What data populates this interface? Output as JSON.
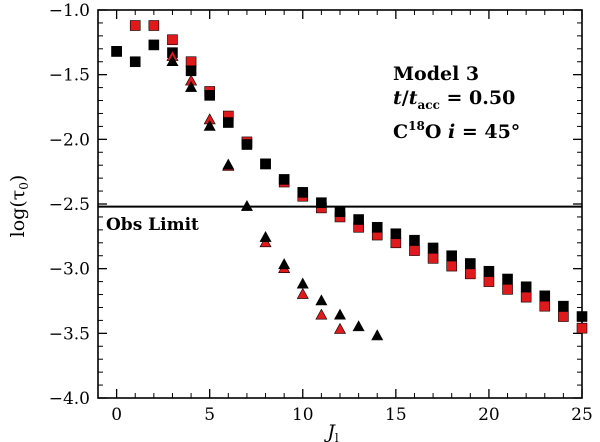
{
  "chart_data": {
    "type": "scatter",
    "xlabel": "J",
    "xlabel_sub": "l",
    "ylabel": "log(τ",
    "ylabel_sub": "0",
    "ylabel_close": ")",
    "xlim": [
      -1,
      25
    ],
    "ylim": [
      -4.0,
      -1.0
    ],
    "xticks": [
      0,
      5,
      10,
      15,
      20,
      25
    ],
    "xtick_labels": [
      "0",
      "5",
      "10",
      "15",
      "20",
      "25"
    ],
    "yticks": [
      -1.0,
      -1.5,
      -2.0,
      -2.5,
      -3.0,
      -3.5,
      -4.0
    ],
    "ytick_labels": [
      "−1.0",
      "−1.5",
      "−2.0",
      "−2.5",
      "−3.0",
      "−3.5",
      "−4.0"
    ],
    "hline": {
      "y": -2.52,
      "label": "Obs Limit"
    },
    "annotations": {
      "model": "Model 3",
      "time_t": "t",
      "time_slash": "/",
      "time_t2": "t",
      "time_sub": "acc",
      "time_value": " = 0.50",
      "species_C": "C",
      "species_sup": "18",
      "species_O": "O ",
      "species_i": "i",
      "species_value": " = 45°"
    },
    "series": [
      {
        "name": "red-squares",
        "marker": "square",
        "color": "#e0191c",
        "x": [
          0,
          1,
          2,
          3,
          4,
          5,
          6,
          7,
          8,
          9,
          10,
          11,
          12,
          13,
          14,
          15,
          16,
          17,
          18,
          19,
          20,
          21,
          22,
          23,
          24,
          25
        ],
        "y": [
          -1.32,
          -1.12,
          -1.12,
          -1.23,
          -1.4,
          -1.63,
          -1.82,
          -2.02,
          -2.19,
          -2.33,
          -2.44,
          -2.53,
          -2.6,
          -2.68,
          -2.74,
          -2.8,
          -2.86,
          -2.92,
          -2.98,
          -3.04,
          -3.1,
          -3.16,
          -3.22,
          -3.29,
          -3.37,
          -3.46
        ]
      },
      {
        "name": "black-squares",
        "marker": "square",
        "color": "#000000",
        "x": [
          0,
          1,
          2,
          3,
          4,
          5,
          6,
          7,
          8,
          9,
          10,
          11,
          12,
          13,
          14,
          15,
          16,
          17,
          18,
          19,
          20,
          21,
          22,
          23,
          24,
          25
        ],
        "y": [
          -1.32,
          -1.4,
          -1.27,
          -1.33,
          -1.47,
          -1.66,
          -1.87,
          -2.04,
          -2.19,
          -2.31,
          -2.41,
          -2.49,
          -2.56,
          -2.62,
          -2.68,
          -2.73,
          -2.78,
          -2.84,
          -2.9,
          -2.96,
          -3.02,
          -3.08,
          -3.14,
          -3.21,
          -3.29,
          -3.37
        ]
      },
      {
        "name": "red-triangles",
        "marker": "triangle",
        "color": "#e0191c",
        "x": [
          3,
          4,
          5,
          6,
          8,
          9,
          10,
          11,
          12
        ],
        "y": [
          -1.36,
          -1.55,
          -1.85,
          -2.21,
          -2.8,
          -3.0,
          -3.2,
          -3.36,
          -3.47
        ]
      },
      {
        "name": "black-triangles",
        "marker": "triangle",
        "color": "#000000",
        "x": [
          3,
          4,
          5,
          6,
          7,
          8,
          9,
          10,
          11,
          12,
          13,
          14
        ],
        "y": [
          -1.4,
          -1.6,
          -1.9,
          -2.2,
          -2.52,
          -2.76,
          -2.97,
          -3.12,
          -3.25,
          -3.36,
          -3.45,
          -3.52
        ]
      }
    ]
  }
}
